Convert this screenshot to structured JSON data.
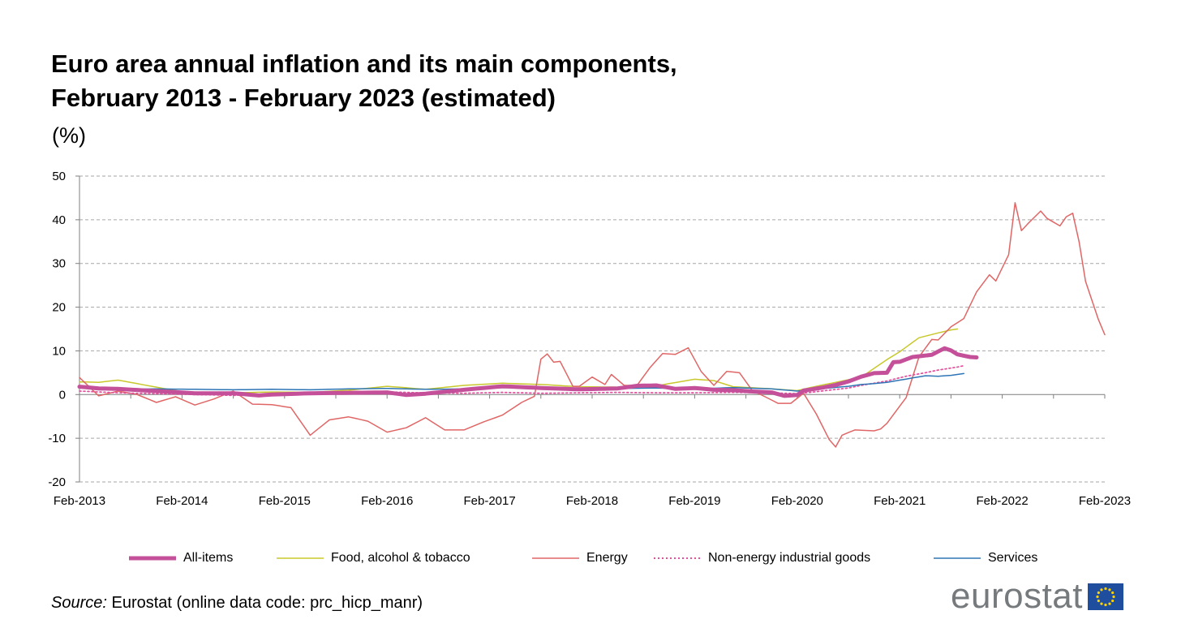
{
  "chart_data": {
    "type": "line",
    "title": [
      "Euro area annual inflation and its main components,",
      "February 2013 - February 2023 (estimated)"
    ],
    "ylabel": "(%)",
    "xlabel": "",
    "ylim": [
      -20,
      50
    ],
    "yticks": [
      50,
      40,
      30,
      20,
      10,
      0,
      -10,
      -20
    ],
    "x_tick_labels": [
      "Feb-2013",
      "Feb-2014",
      "Feb-2015",
      "Feb-2016",
      "Feb-2017",
      "Feb-2018",
      "Feb-2019",
      "Feb-2020",
      "Feb-2021",
      "Feb-2022",
      "Feb-2023"
    ],
    "x_start": "Feb-2013",
    "x_end": "Feb-2023",
    "months": 121,
    "grid": true,
    "legend_position": "bottom",
    "series": [
      {
        "name": "Food, alcohol & tobacco",
        "color": "#c8c82d",
        "dash": false,
        "width": 1.5,
        "anchors": [
          [
            0,
            2.9
          ],
          [
            3,
            2.8
          ],
          [
            6,
            3.3
          ],
          [
            12,
            1.7
          ],
          [
            18,
            0.1
          ],
          [
            24,
            0.4
          ],
          [
            30,
            0.6
          ],
          [
            36,
            0.5
          ],
          [
            42,
            1.0
          ],
          [
            48,
            1.9
          ],
          [
            54,
            1.2
          ],
          [
            60,
            2.1
          ],
          [
            66,
            2.6
          ],
          [
            72,
            2.3
          ],
          [
            78,
            1.8
          ],
          [
            84,
            1.7
          ],
          [
            90,
            2.0
          ],
          [
            96,
            3.5
          ],
          [
            99,
            3.2
          ],
          [
            102,
            1.8
          ],
          [
            108,
            1.3
          ],
          [
            112,
            0.9
          ],
          [
            114,
            1.6
          ],
          [
            117,
            2.5
          ],
          [
            120,
            3.4
          ],
          [
            122,
            4.0
          ],
          [
            124,
            6.0
          ],
          [
            126,
            8.0
          ],
          [
            128,
            9.8
          ],
          [
            131,
            13.0
          ],
          [
            134,
            14.1
          ],
          [
            136,
            14.8
          ],
          [
            137,
            15.0
          ]
        ]
      },
      {
        "name": "Energy",
        "color": "#e06666",
        "dash": false,
        "width": 1.5,
        "anchors": [
          [
            0,
            3.9
          ],
          [
            3,
            -0.3
          ],
          [
            6,
            0.8
          ],
          [
            9,
            0.0
          ],
          [
            12,
            -1.8
          ],
          [
            15,
            -0.5
          ],
          [
            18,
            -2.4
          ],
          [
            21,
            -1.0
          ],
          [
            24,
            0.8
          ],
          [
            27,
            -2.2
          ],
          [
            30,
            -2.3
          ],
          [
            33,
            -3.0
          ],
          [
            36,
            -9.3
          ],
          [
            39,
            -5.8
          ],
          [
            42,
            -5.1
          ],
          [
            45,
            -6.1
          ],
          [
            48,
            -8.6
          ],
          [
            51,
            -7.6
          ],
          [
            54,
            -5.3
          ],
          [
            57,
            -8.1
          ],
          [
            60,
            -8.1
          ],
          [
            63,
            -6.3
          ],
          [
            66,
            -4.7
          ],
          [
            69,
            -1.8
          ],
          [
            71,
            -0.4
          ],
          [
            72,
            8.1
          ],
          [
            73,
            9.3
          ],
          [
            74,
            7.4
          ],
          [
            75,
            7.6
          ],
          [
            77,
            1.9
          ],
          [
            78,
            1.9
          ],
          [
            80,
            4.0
          ],
          [
            82,
            2.3
          ],
          [
            83,
            4.6
          ],
          [
            85,
            2.1
          ],
          [
            87,
            2.1
          ],
          [
            89,
            6.1
          ],
          [
            91,
            9.4
          ],
          [
            93,
            9.2
          ],
          [
            95,
            10.7
          ],
          [
            97,
            5.3
          ],
          [
            99,
            2.1
          ],
          [
            101,
            5.3
          ],
          [
            103,
            5.0
          ],
          [
            105,
            0.9
          ],
          [
            107,
            -0.5
          ],
          [
            109,
            -2.0
          ],
          [
            111,
            -2.0
          ],
          [
            113,
            0.3
          ],
          [
            115,
            -4.5
          ],
          [
            117,
            -10.3
          ],
          [
            118,
            -12.0
          ],
          [
            119,
            -9.3
          ],
          [
            121,
            -8.1
          ],
          [
            124,
            -8.3
          ],
          [
            125,
            -7.9
          ],
          [
            126,
            -6.6
          ],
          [
            129,
            -0.7
          ],
          [
            131,
            8.6
          ],
          [
            133,
            12.6
          ],
          [
            134,
            12.5
          ],
          [
            136,
            15.5
          ],
          [
            138,
            17.4
          ],
          [
            140,
            23.5
          ],
          [
            142,
            27.4
          ],
          [
            143,
            26.0
          ],
          [
            145,
            32.0
          ],
          [
            146,
            43.9
          ],
          [
            147,
            37.5
          ],
          [
            148,
            39.1
          ],
          [
            150,
            42.0
          ],
          [
            151,
            40.3
          ],
          [
            153,
            38.6
          ],
          [
            154,
            40.7
          ],
          [
            155,
            41.5
          ],
          [
            156,
            34.9
          ],
          [
            157,
            25.9
          ],
          [
            159,
            17.2
          ],
          [
            160,
            13.7
          ]
        ]
      },
      {
        "name": "Non-energy industrial goods",
        "color": "#e0509d",
        "dash": true,
        "width": 1.7,
        "anchors": [
          [
            0,
            0.8
          ],
          [
            6,
            0.4
          ],
          [
            12,
            0.2
          ],
          [
            18,
            0.0
          ],
          [
            24,
            -0.2
          ],
          [
            30,
            0.2
          ],
          [
            36,
            0.4
          ],
          [
            42,
            0.5
          ],
          [
            48,
            0.6
          ],
          [
            54,
            0.4
          ],
          [
            60,
            0.3
          ],
          [
            66,
            0.5
          ],
          [
            72,
            0.3
          ],
          [
            78,
            0.4
          ],
          [
            84,
            0.5
          ],
          [
            90,
            0.4
          ],
          [
            96,
            0.4
          ],
          [
            102,
            0.5
          ],
          [
            108,
            0.4
          ],
          [
            112,
            0.2
          ],
          [
            114,
            0.5
          ],
          [
            117,
            1.0
          ],
          [
            120,
            1.5
          ],
          [
            122,
            2.1
          ],
          [
            124,
            2.6
          ],
          [
            126,
            3.1
          ],
          [
            129,
            4.2
          ],
          [
            132,
            5.0
          ],
          [
            134,
            5.6
          ],
          [
            137,
            6.3
          ],
          [
            138,
            6.6
          ]
        ]
      },
      {
        "name": "Services",
        "color": "#2e75b6",
        "dash": false,
        "width": 1.5,
        "anchors": [
          [
            0,
            1.6
          ],
          [
            3,
            1.1
          ],
          [
            6,
            1.2
          ],
          [
            12,
            1.3
          ],
          [
            18,
            1.2
          ],
          [
            24,
            1.1
          ],
          [
            30,
            1.2
          ],
          [
            36,
            1.1
          ],
          [
            42,
            1.3
          ],
          [
            48,
            1.4
          ],
          [
            54,
            1.2
          ],
          [
            60,
            1.3
          ],
          [
            66,
            1.6
          ],
          [
            72,
            1.3
          ],
          [
            78,
            1.4
          ],
          [
            84,
            1.4
          ],
          [
            90,
            1.5
          ],
          [
            96,
            1.3
          ],
          [
            102,
            1.6
          ],
          [
            108,
            1.3
          ],
          [
            112,
            0.8
          ],
          [
            114,
            1.1
          ],
          [
            117,
            1.5
          ],
          [
            120,
            1.9
          ],
          [
            122,
            2.3
          ],
          [
            124,
            2.5
          ],
          [
            126,
            2.8
          ],
          [
            128,
            3.3
          ],
          [
            130,
            3.8
          ],
          [
            132,
            4.3
          ],
          [
            134,
            4.2
          ],
          [
            136,
            4.4
          ],
          [
            137,
            4.6
          ],
          [
            138,
            4.8
          ]
        ]
      },
      {
        "name": "All-items",
        "color": "#c5509a",
        "dash": false,
        "width": 5,
        "anchors": [
          [
            0,
            1.8
          ],
          [
            3,
            1.4
          ],
          [
            6,
            1.3
          ],
          [
            12,
            0.8
          ],
          [
            18,
            0.3
          ],
          [
            24,
            0.3
          ],
          [
            28,
            -0.2
          ],
          [
            30,
            0.0
          ],
          [
            36,
            0.3
          ],
          [
            42,
            0.4
          ],
          [
            48,
            0.5
          ],
          [
            51,
            -0.1
          ],
          [
            54,
            0.2
          ],
          [
            60,
            1.1
          ],
          [
            66,
            1.9
          ],
          [
            72,
            1.5
          ],
          [
            78,
            1.2
          ],
          [
            84,
            1.4
          ],
          [
            87,
            2.0
          ],
          [
            90,
            2.1
          ],
          [
            93,
            1.3
          ],
          [
            96,
            1.5
          ],
          [
            99,
            1.1
          ],
          [
            102,
            1.0
          ],
          [
            105,
            0.7
          ],
          [
            108,
            0.5
          ],
          [
            110,
            -0.3
          ],
          [
            112,
            -0.1
          ],
          [
            113,
            0.9
          ],
          [
            116,
            1.6
          ],
          [
            118,
            2.2
          ],
          [
            120,
            3.0
          ],
          [
            122,
            4.1
          ],
          [
            124,
            4.9
          ],
          [
            126,
            5.0
          ],
          [
            127,
            7.4
          ],
          [
            128,
            7.5
          ],
          [
            130,
            8.6
          ],
          [
            133,
            9.1
          ],
          [
            135,
            10.6
          ],
          [
            136,
            10.1
          ],
          [
            137,
            9.2
          ],
          [
            139,
            8.6
          ],
          [
            140,
            8.5
          ]
        ]
      }
    ]
  },
  "legend": [
    {
      "label": "All-items",
      "color": "#c5509a",
      "style": "thick"
    },
    {
      "label": "Food, alcohol & tobacco",
      "color": "#c8c82d",
      "style": "solid"
    },
    {
      "label": "Energy",
      "color": "#e06666",
      "style": "solid"
    },
    {
      "label": "Non-energy industrial goods",
      "color": "#e0509d",
      "style": "dotted"
    },
    {
      "label": "Services",
      "color": "#2e75b6",
      "style": "solid"
    }
  ],
  "source": {
    "prefix": "Source:",
    "text": " Eurostat (online data code: prc_hicp_manr)"
  },
  "logo": {
    "text": "eurostat",
    "flag_color": "#1f4e9e",
    "star_color": "#ffd200"
  }
}
